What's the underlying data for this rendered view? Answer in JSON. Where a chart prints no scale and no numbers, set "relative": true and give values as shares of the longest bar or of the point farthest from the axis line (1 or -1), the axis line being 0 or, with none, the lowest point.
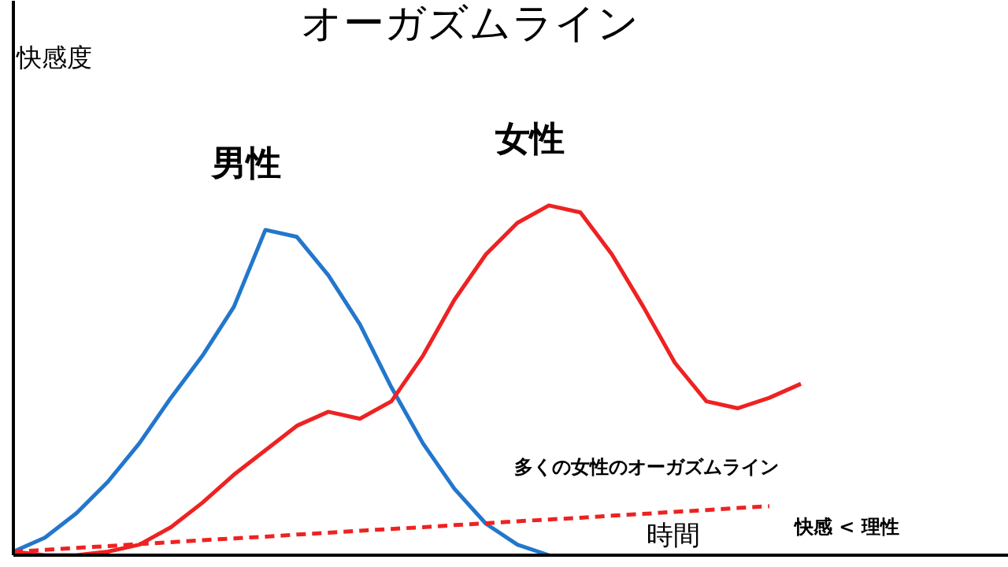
{
  "chart_data": {
    "type": "line",
    "relative": true,
    "title": "オーガズムライン",
    "xlabel": "時間",
    "legend": false,
    "categories": [
      null,
      null,
      null,
      null,
      null,
      null,
      null,
      null,
      null,
      null,
      null,
      null,
      null,
      null,
      null,
      null,
      null,
      null,
      null,
      null,
      null,
      null,
      null,
      null,
      null,
      null
    ],
    "series": [
      {
        "name": "男性",
        "color": "#2277cc",
        "line_style": "solid",
        "values": [
          0.01,
          0.05,
          0.12,
          0.21,
          0.32,
          0.45,
          0.57,
          0.71,
          0.93,
          0.91,
          0.8,
          0.66,
          0.48,
          0.32,
          0.19,
          0.09,
          0.03,
          0.0,
          null,
          null,
          null,
          null,
          null,
          null,
          null,
          null
        ]
      },
      {
        "name": "女性",
        "color": "#ee2222",
        "line_style": "solid",
        "values": [
          0.01,
          0.0,
          0.0,
          0.01,
          0.03,
          0.08,
          0.15,
          0.23,
          0.3,
          0.37,
          0.41,
          0.39,
          0.44,
          0.57,
          0.73,
          0.86,
          0.95,
          1.0,
          0.98,
          0.86,
          0.71,
          0.55,
          0.44,
          0.42,
          0.45,
          0.49
        ]
      },
      {
        "name": "多くの女性のオーガズムライン",
        "color": "#ee2222",
        "line_style": "dashed",
        "values": [
          0.01,
          0.015,
          0.021,
          0.026,
          0.032,
          0.037,
          0.043,
          0.048,
          0.053,
          0.059,
          0.064,
          0.07,
          0.075,
          0.08,
          0.086,
          0.091,
          0.097,
          0.102,
          0.107,
          0.113,
          0.118,
          0.124,
          0.129,
          0.135,
          0.14,
          null
        ]
      }
    ],
    "annotations": [
      "快感度",
      "快感 < 理性"
    ]
  }
}
